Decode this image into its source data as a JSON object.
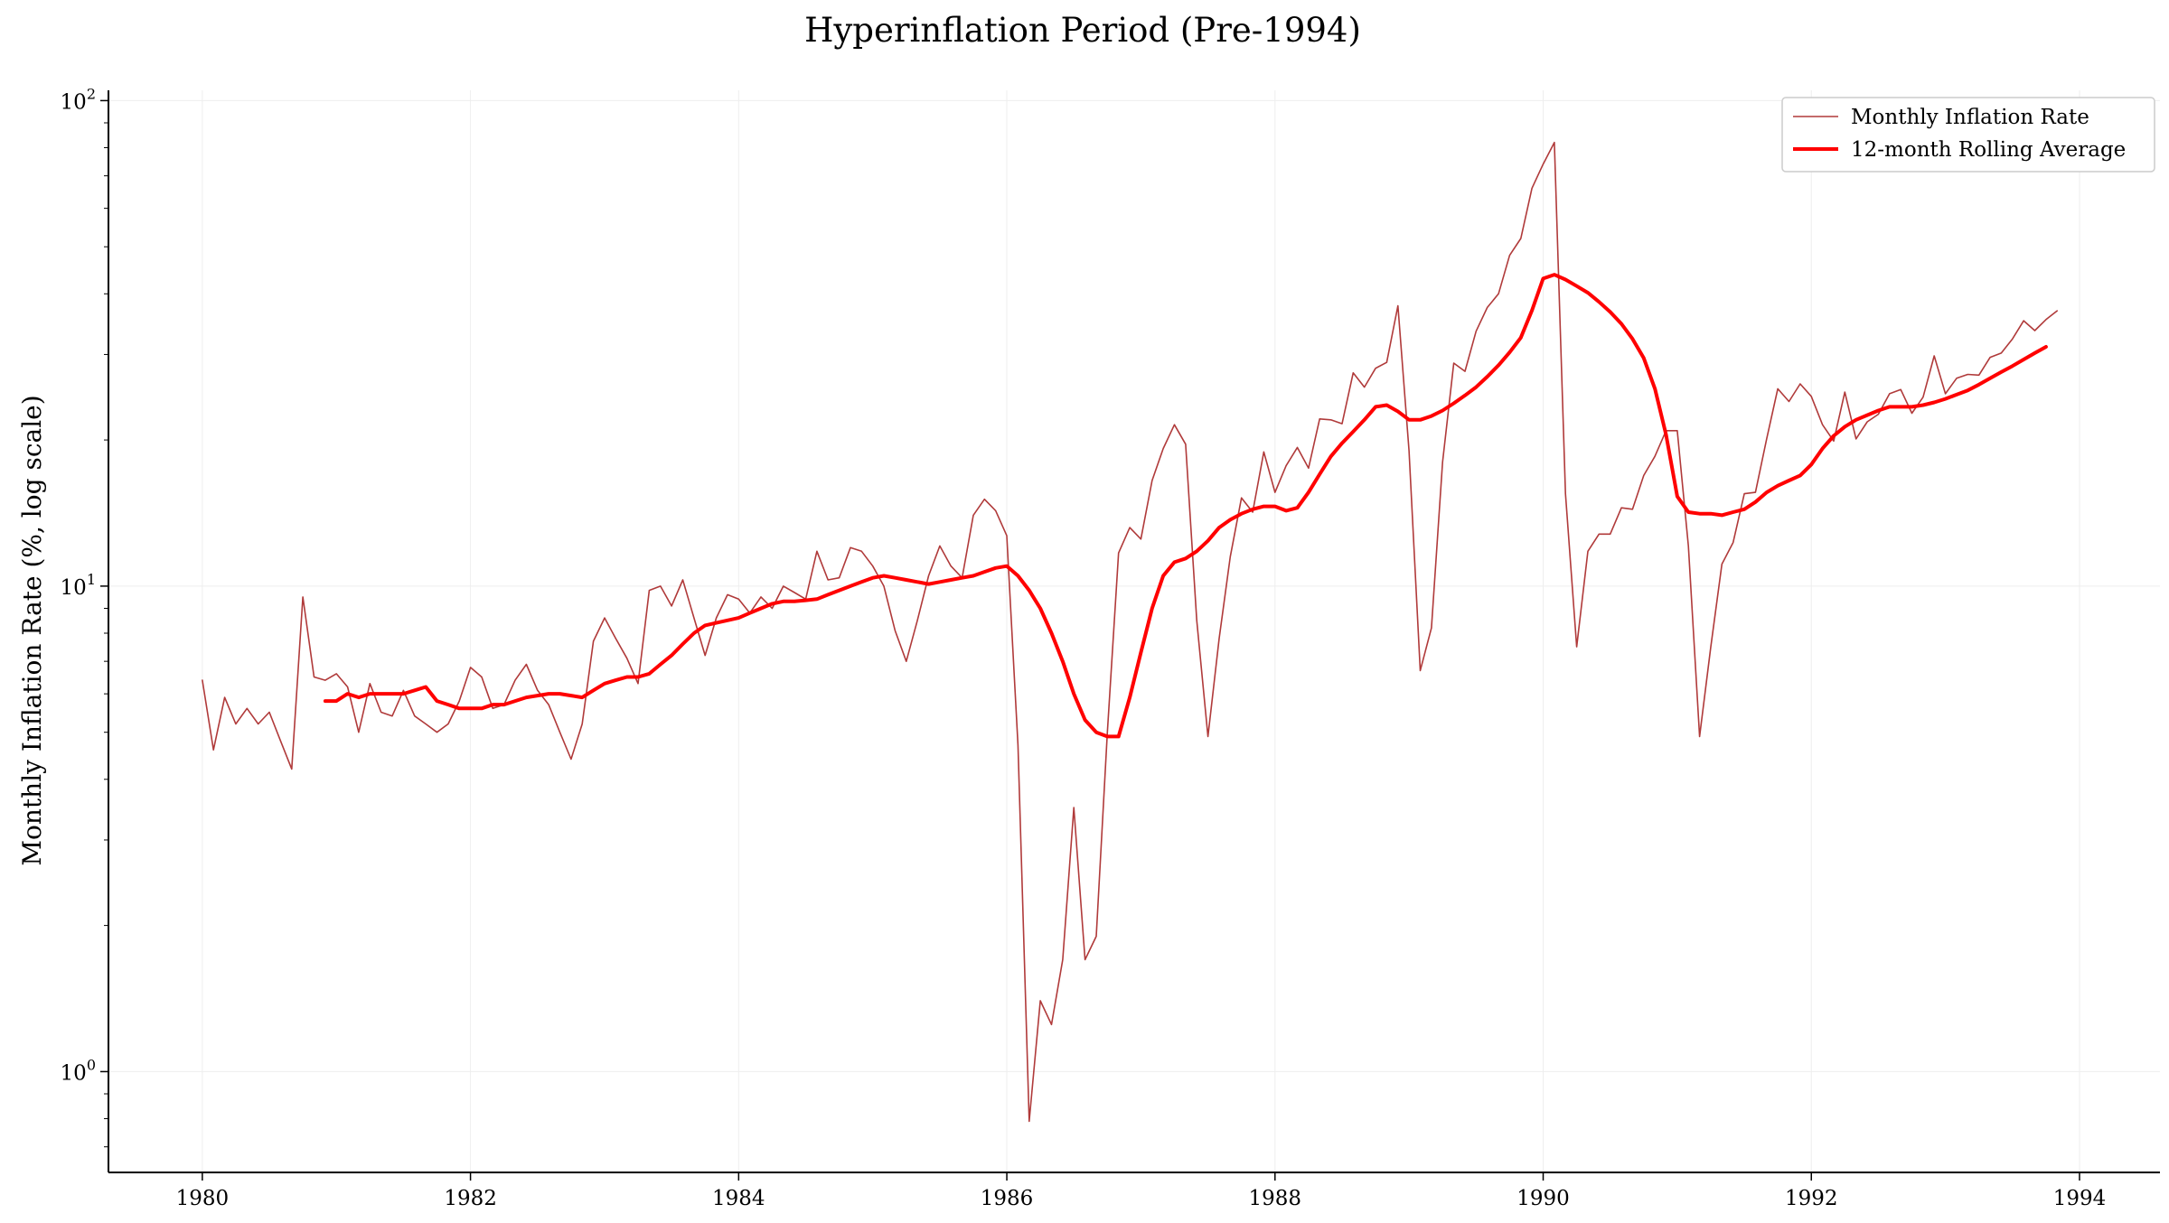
{
  "chart_data": {
    "type": "line",
    "title": "Hyperinflation Period (Pre-1994)",
    "xlabel": "",
    "ylabel": "Monthly Inflation Rate (%, log scale)",
    "yscale": "log",
    "ylim": [
      0.62,
      105
    ],
    "xlim": [
      1979.3,
      1994.6
    ],
    "x_ticks": [
      1980,
      1982,
      1984,
      1986,
      1988,
      1990,
      1992,
      1994
    ],
    "x_tick_labels": [
      "1980",
      "1982",
      "1984",
      "1986",
      "1988",
      "1990",
      "1992",
      "1994"
    ],
    "y_ticks": [
      1,
      10,
      100
    ],
    "y_tick_labels": [
      {
        "base": "10",
        "exp": "0"
      },
      {
        "base": "10",
        "exp": "1"
      },
      {
        "base": "10",
        "exp": "2"
      }
    ],
    "grid": true,
    "legend_position": "top-right",
    "series": [
      {
        "name": "Monthly Inflation Rate",
        "color": "#b03a3a",
        "x_start": 1980.0,
        "x_step": 0.083333,
        "values": [
          6.4,
          4.6,
          5.9,
          5.2,
          5.6,
          5.2,
          5.5,
          4.8,
          4.2,
          9.5,
          6.5,
          6.4,
          6.6,
          6.2,
          5.0,
          6.3,
          5.5,
          5.4,
          6.1,
          5.4,
          5.2,
          5.0,
          5.2,
          5.8,
          6.8,
          6.5,
          5.6,
          5.7,
          6.4,
          6.9,
          6.1,
          5.7,
          5.0,
          4.4,
          5.2,
          7.7,
          8.6,
          7.8,
          7.1,
          6.3,
          9.8,
          10.0,
          9.1,
          10.3,
          8.6,
          7.2,
          8.6,
          9.6,
          9.4,
          8.8,
          9.5,
          9.0,
          10.0,
          9.7,
          9.4,
          11.8,
          10.3,
          10.4,
          12.0,
          11.8,
          11.0,
          10.0,
          8.1,
          7.0,
          8.5,
          10.5,
          12.1,
          11.0,
          10.4,
          14.0,
          15.1,
          14.3,
          12.7,
          4.7,
          0.79,
          1.4,
          1.25,
          1.7,
          3.5,
          1.7,
          1.9,
          5.0,
          11.7,
          13.2,
          12.5,
          16.5,
          19.2,
          21.5,
          19.6,
          8.5,
          4.9,
          7.8,
          11.5,
          15.2,
          14.2,
          18.9,
          15.6,
          17.7,
          19.3,
          17.5,
          22.1,
          22.0,
          21.6,
          27.5,
          25.7,
          28.1,
          28.9,
          37.8,
          19.0,
          6.7,
          8.2,
          18.0,
          28.8,
          27.7,
          33.5,
          37.5,
          40.0,
          48.0,
          52.0,
          66.0,
          74.0,
          82.0,
          15.5,
          7.5,
          11.8,
          12.8,
          12.8,
          14.5,
          14.4,
          16.9,
          18.5,
          20.9,
          20.9,
          12.1,
          4.9,
          7.5,
          11.1,
          12.3,
          15.5,
          15.6,
          20.1,
          25.5,
          24.0,
          26.1,
          24.6,
          21.5,
          19.9,
          25.1,
          20.1,
          21.8,
          22.6,
          24.9,
          25.4,
          22.7,
          24.5,
          29.8,
          24.9,
          26.8,
          27.3,
          27.2,
          29.6,
          30.2,
          32.3,
          35.2,
          33.6,
          35.4,
          36.9
        ]
      },
      {
        "name": "12-month Rolling Average",
        "color": "#ff0000",
        "x_start": 1980.9167,
        "x_step": 0.083333,
        "values": [
          5.8,
          5.8,
          6.0,
          5.9,
          6.0,
          6.0,
          6.0,
          6.0,
          6.1,
          6.2,
          5.8,
          5.7,
          5.6,
          5.6,
          5.6,
          5.7,
          5.7,
          5.8,
          5.9,
          5.95,
          6.0,
          6.0,
          5.95,
          5.9,
          6.1,
          6.3,
          6.4,
          6.5,
          6.5,
          6.6,
          6.9,
          7.2,
          7.6,
          8.0,
          8.3,
          8.4,
          8.5,
          8.6,
          8.8,
          9.0,
          9.2,
          9.3,
          9.3,
          9.35,
          9.4,
          9.6,
          9.8,
          10.0,
          10.2,
          10.4,
          10.5,
          10.4,
          10.3,
          10.2,
          10.1,
          10.2,
          10.3,
          10.4,
          10.5,
          10.7,
          10.9,
          11.0,
          10.5,
          9.8,
          9.0,
          8.0,
          7.0,
          6.0,
          5.3,
          5.0,
          4.9,
          4.9,
          5.9,
          7.3,
          9.0,
          10.5,
          11.2,
          11.4,
          11.8,
          12.4,
          13.2,
          13.7,
          14.1,
          14.4,
          14.6,
          14.6,
          14.3,
          14.5,
          15.6,
          17.0,
          18.5,
          19.7,
          20.8,
          22.0,
          23.4,
          23.6,
          22.9,
          22.0,
          22.0,
          22.4,
          23.0,
          23.8,
          24.7,
          25.7,
          27.0,
          28.5,
          30.3,
          32.5,
          37.0,
          43.0,
          43.8,
          42.8,
          41.5,
          40.2,
          38.5,
          36.7,
          34.7,
          32.3,
          29.5,
          25.5,
          20.5,
          15.3,
          14.2,
          14.1,
          14.1,
          14.0,
          14.2,
          14.4,
          14.9,
          15.6,
          16.1,
          16.5,
          16.9,
          17.8,
          19.2,
          20.4,
          21.3,
          22.0,
          22.5,
          23.0,
          23.4,
          23.4,
          23.4,
          23.6,
          23.9,
          24.3,
          24.8,
          25.3,
          26.0,
          26.8,
          27.6,
          28.4,
          29.3,
          30.2,
          31.1
        ]
      }
    ]
  }
}
